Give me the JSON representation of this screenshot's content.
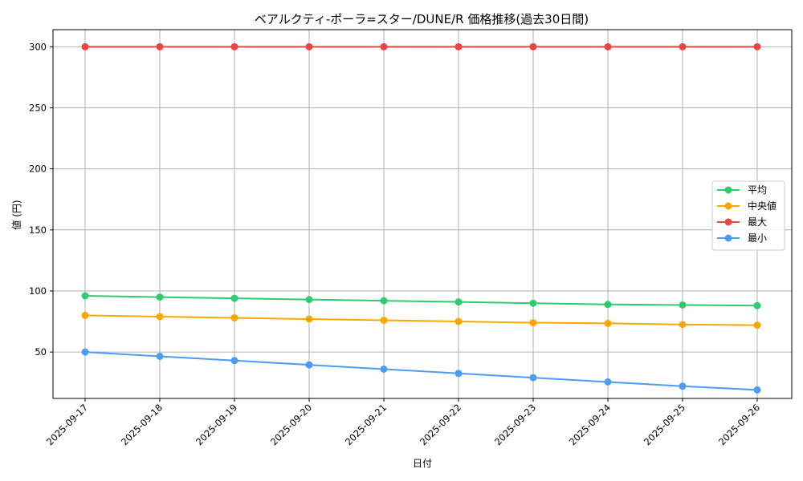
{
  "chart_data": {
    "type": "line",
    "title": "ベアルクティ-ポーラ=スター/DUNE/R 価格推移(過去30日間)",
    "xlabel": "日付",
    "ylabel": "値 (円)",
    "categories": [
      "2025-09-17",
      "2025-09-18",
      "2025-09-19",
      "2025-09-20",
      "2025-09-21",
      "2025-09-22",
      "2025-09-23",
      "2025-09-24",
      "2025-09-25",
      "2025-09-26"
    ],
    "ylim": [
      12,
      314
    ],
    "yticks": [
      50,
      100,
      150,
      200,
      250,
      300
    ],
    "grid": true,
    "legend_position": "center-right",
    "series": [
      {
        "name": "平均",
        "color": "#2ecc71",
        "values": [
          96,
          95,
          94,
          93,
          92,
          91,
          90,
          89,
          88.5,
          88
        ]
      },
      {
        "name": "中央値",
        "color": "#ffa500",
        "values": [
          80,
          79,
          78,
          77,
          76,
          75,
          74,
          73.5,
          72.5,
          72
        ]
      },
      {
        "name": "最大",
        "color": "#ef4444",
        "values": [
          300,
          300,
          300,
          300,
          300,
          300,
          300,
          300,
          300,
          300
        ]
      },
      {
        "name": "最小",
        "color": "#4e9bf5",
        "values": [
          50,
          46.5,
          43,
          39.5,
          36,
          32.5,
          29,
          25.5,
          22,
          19
        ]
      }
    ]
  }
}
